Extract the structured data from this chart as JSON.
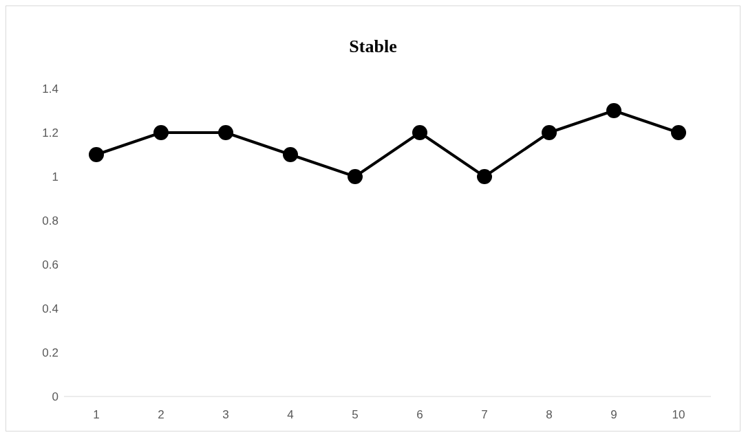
{
  "chart_data": {
    "type": "line",
    "title": "Stable",
    "categories": [
      "1",
      "2",
      "3",
      "4",
      "5",
      "6",
      "7",
      "8",
      "9",
      "10"
    ],
    "series": [
      {
        "color": "#000000",
        "values": [
          1.1,
          1.2,
          1.2,
          1.1,
          1.0,
          1.2,
          1.0,
          1.2,
          1.3,
          1.2
        ]
      }
    ],
    "ylim": [
      0,
      1.4
    ],
    "yticks": [
      0,
      0.2,
      0.4,
      0.6,
      0.8,
      1,
      1.2,
      1.4
    ],
    "marker": "circle",
    "line_style": "solid"
  }
}
